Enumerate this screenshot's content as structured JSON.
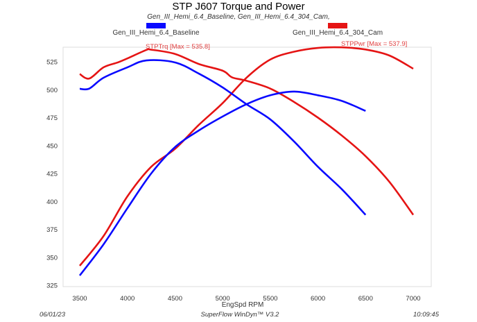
{
  "chart_data": {
    "type": "line",
    "title": "STP J607 Torque and Power",
    "subtitle": "Gen_III_Hemi_6.4_Baseline, Gen_III_Hemi_6.4_304_Cam,",
    "xlabel": "EngSpd RPM",
    "ylabel": "",
    "xlim": [
      3325,
      7175
    ],
    "ylim": [
      322,
      548
    ],
    "xticks": [
      3500,
      4000,
      4500,
      5000,
      5500,
      6000,
      6500,
      7000
    ],
    "yticks": [
      325,
      350,
      375,
      400,
      425,
      450,
      475,
      500,
      525
    ],
    "grid": false,
    "legend": [
      {
        "name": "Gen_III_Hemi_6.4_Baseline",
        "color": "#0a0aff"
      },
      {
        "name": "Gen_III_Hemi_6.4_304_Cam",
        "color": "#e51414"
      }
    ],
    "annotations": [
      {
        "text": "STPTrq [Max = 535.8]",
        "color": "#e04040"
      },
      {
        "text": "STPPwr [Max = 537.9]",
        "color": "#e04040"
      }
    ],
    "series": [
      {
        "run": "Gen_III_Hemi_6.4_304_Cam",
        "quantity": "STPTrq",
        "color": "#e51414",
        "x": [
          3500,
          3600,
          3750,
          3900,
          4000,
          4200,
          4250,
          4500,
          4750,
          5000,
          5100,
          5250,
          5500,
          5750,
          6000,
          6250,
          6500,
          6750,
          7000
        ],
        "y": [
          514,
          510,
          520,
          524.4,
          528,
          535.6,
          535.8,
          532,
          523,
          517,
          511,
          508,
          501,
          489,
          475,
          459,
          440.5,
          417.5,
          388
        ]
      },
      {
        "run": "Gen_III_Hemi_6.4_304_Cam",
        "quantity": "STPPwr",
        "color": "#e51414",
        "x": [
          3500,
          3750,
          4000,
          4250,
          4500,
          4750,
          5000,
          5250,
          5500,
          5750,
          6000,
          6250,
          6500,
          6750,
          7000
        ],
        "y": [
          342.4,
          369,
          404.5,
          431,
          447,
          468.5,
          488,
          510.7,
          527,
          534,
          537.4,
          537.9,
          536,
          530.6,
          518.8
        ]
      },
      {
        "run": "Gen_III_Hemi_6.4_Baseline",
        "quantity": "STPTrq",
        "color": "#0a0aff",
        "x": [
          3500,
          3600,
          3750,
          4000,
          4200,
          4500,
          4750,
          5000,
          5250,
          5500,
          5750,
          6000,
          6250,
          6500
        ],
        "y": [
          500.8,
          501,
          510.7,
          520,
          526.2,
          524.4,
          514.4,
          502,
          487,
          473.4,
          453.6,
          431,
          411,
          388
        ]
      },
      {
        "run": "Gen_III_Hemi_6.4_Baseline",
        "quantity": "STPPwr",
        "color": "#0a0aff",
        "x": [
          3500,
          3750,
          4000,
          4250,
          4500,
          4750,
          5000,
          5250,
          5500,
          5750,
          6000,
          6250,
          6500
        ],
        "y": [
          333.7,
          361.6,
          393.9,
          425,
          448.6,
          463.5,
          476,
          487,
          495,
          498.3,
          495,
          490,
          481
        ]
      }
    ]
  },
  "footer": {
    "date": "06/01/23",
    "software": "SuperFlow WinDyn™ V3.2",
    "time": "10:09:45"
  }
}
